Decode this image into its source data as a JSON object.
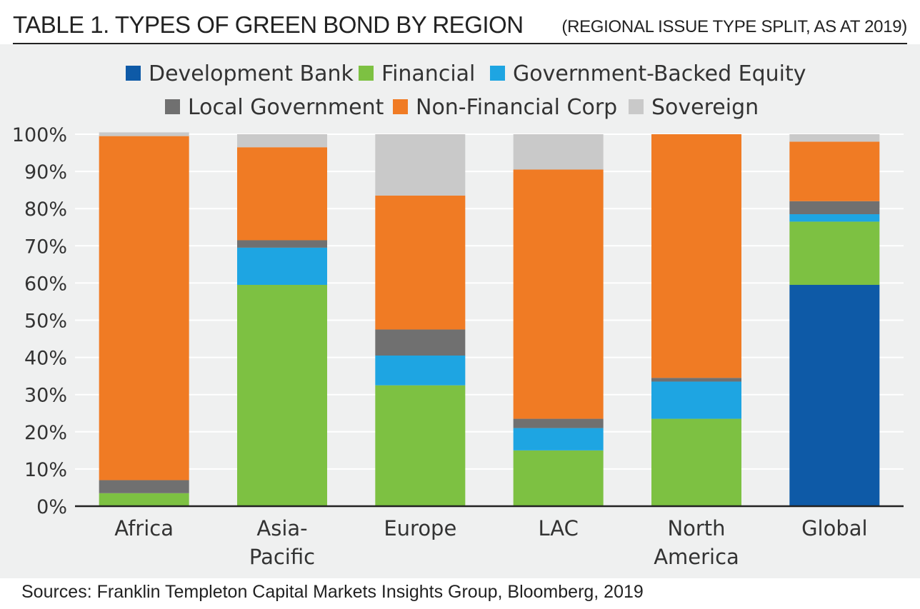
{
  "header": {
    "title": "TABLE 1. TYPES OF GREEN BOND BY REGION",
    "subtitle": "(REGIONAL ISSUE TYPE SPLIT, AS AT 2019)"
  },
  "source": "Sources: Franklin Templeton Capital Markets Insights Group, Bloomberg, 2019",
  "chart_data": {
    "type": "bar",
    "stacked": true,
    "categories": [
      [
        "Africa"
      ],
      [
        "Asia-",
        "Pacific"
      ],
      [
        "Europe"
      ],
      [
        "LAC"
      ],
      [
        "North",
        "America"
      ],
      [
        "Global"
      ]
    ],
    "category_labels": [
      "Africa",
      "Asia-Pacific",
      "Europe",
      "LAC",
      "North America",
      "Global"
    ],
    "ylim": [
      0,
      100
    ],
    "yticks": [
      0,
      10,
      20,
      30,
      40,
      50,
      60,
      70,
      80,
      90,
      100
    ],
    "ytick_labels": [
      "0%",
      "10%",
      "20%",
      "30%",
      "40%",
      "50%",
      "60%",
      "70%",
      "80%",
      "90%",
      "100%"
    ],
    "legend_position": "top",
    "series": [
      {
        "name": "Development Bank",
        "color": "#0e5aa7",
        "values": [
          0,
          0,
          0,
          0,
          0,
          59.5
        ]
      },
      {
        "name": "Financial",
        "color": "#7dc142",
        "values": [
          3.5,
          59.5,
          32.5,
          15,
          23.5,
          17
        ]
      },
      {
        "name": "Government-Backed Equity",
        "color": "#1ea5e2",
        "values": [
          0,
          10,
          8,
          6,
          10,
          2
        ]
      },
      {
        "name": "Local Government",
        "color": "#707070",
        "values": [
          3.5,
          2,
          7,
          2.5,
          1,
          3.5
        ]
      },
      {
        "name": "Non-Financial Corp",
        "color": "#f07b24",
        "values": [
          92.5,
          25,
          36,
          67,
          65.5,
          16
        ]
      },
      {
        "name": "Sovereign",
        "color": "#c9c9c9",
        "values": [
          1,
          3.5,
          16.5,
          9.5,
          0,
          2
        ]
      }
    ]
  }
}
